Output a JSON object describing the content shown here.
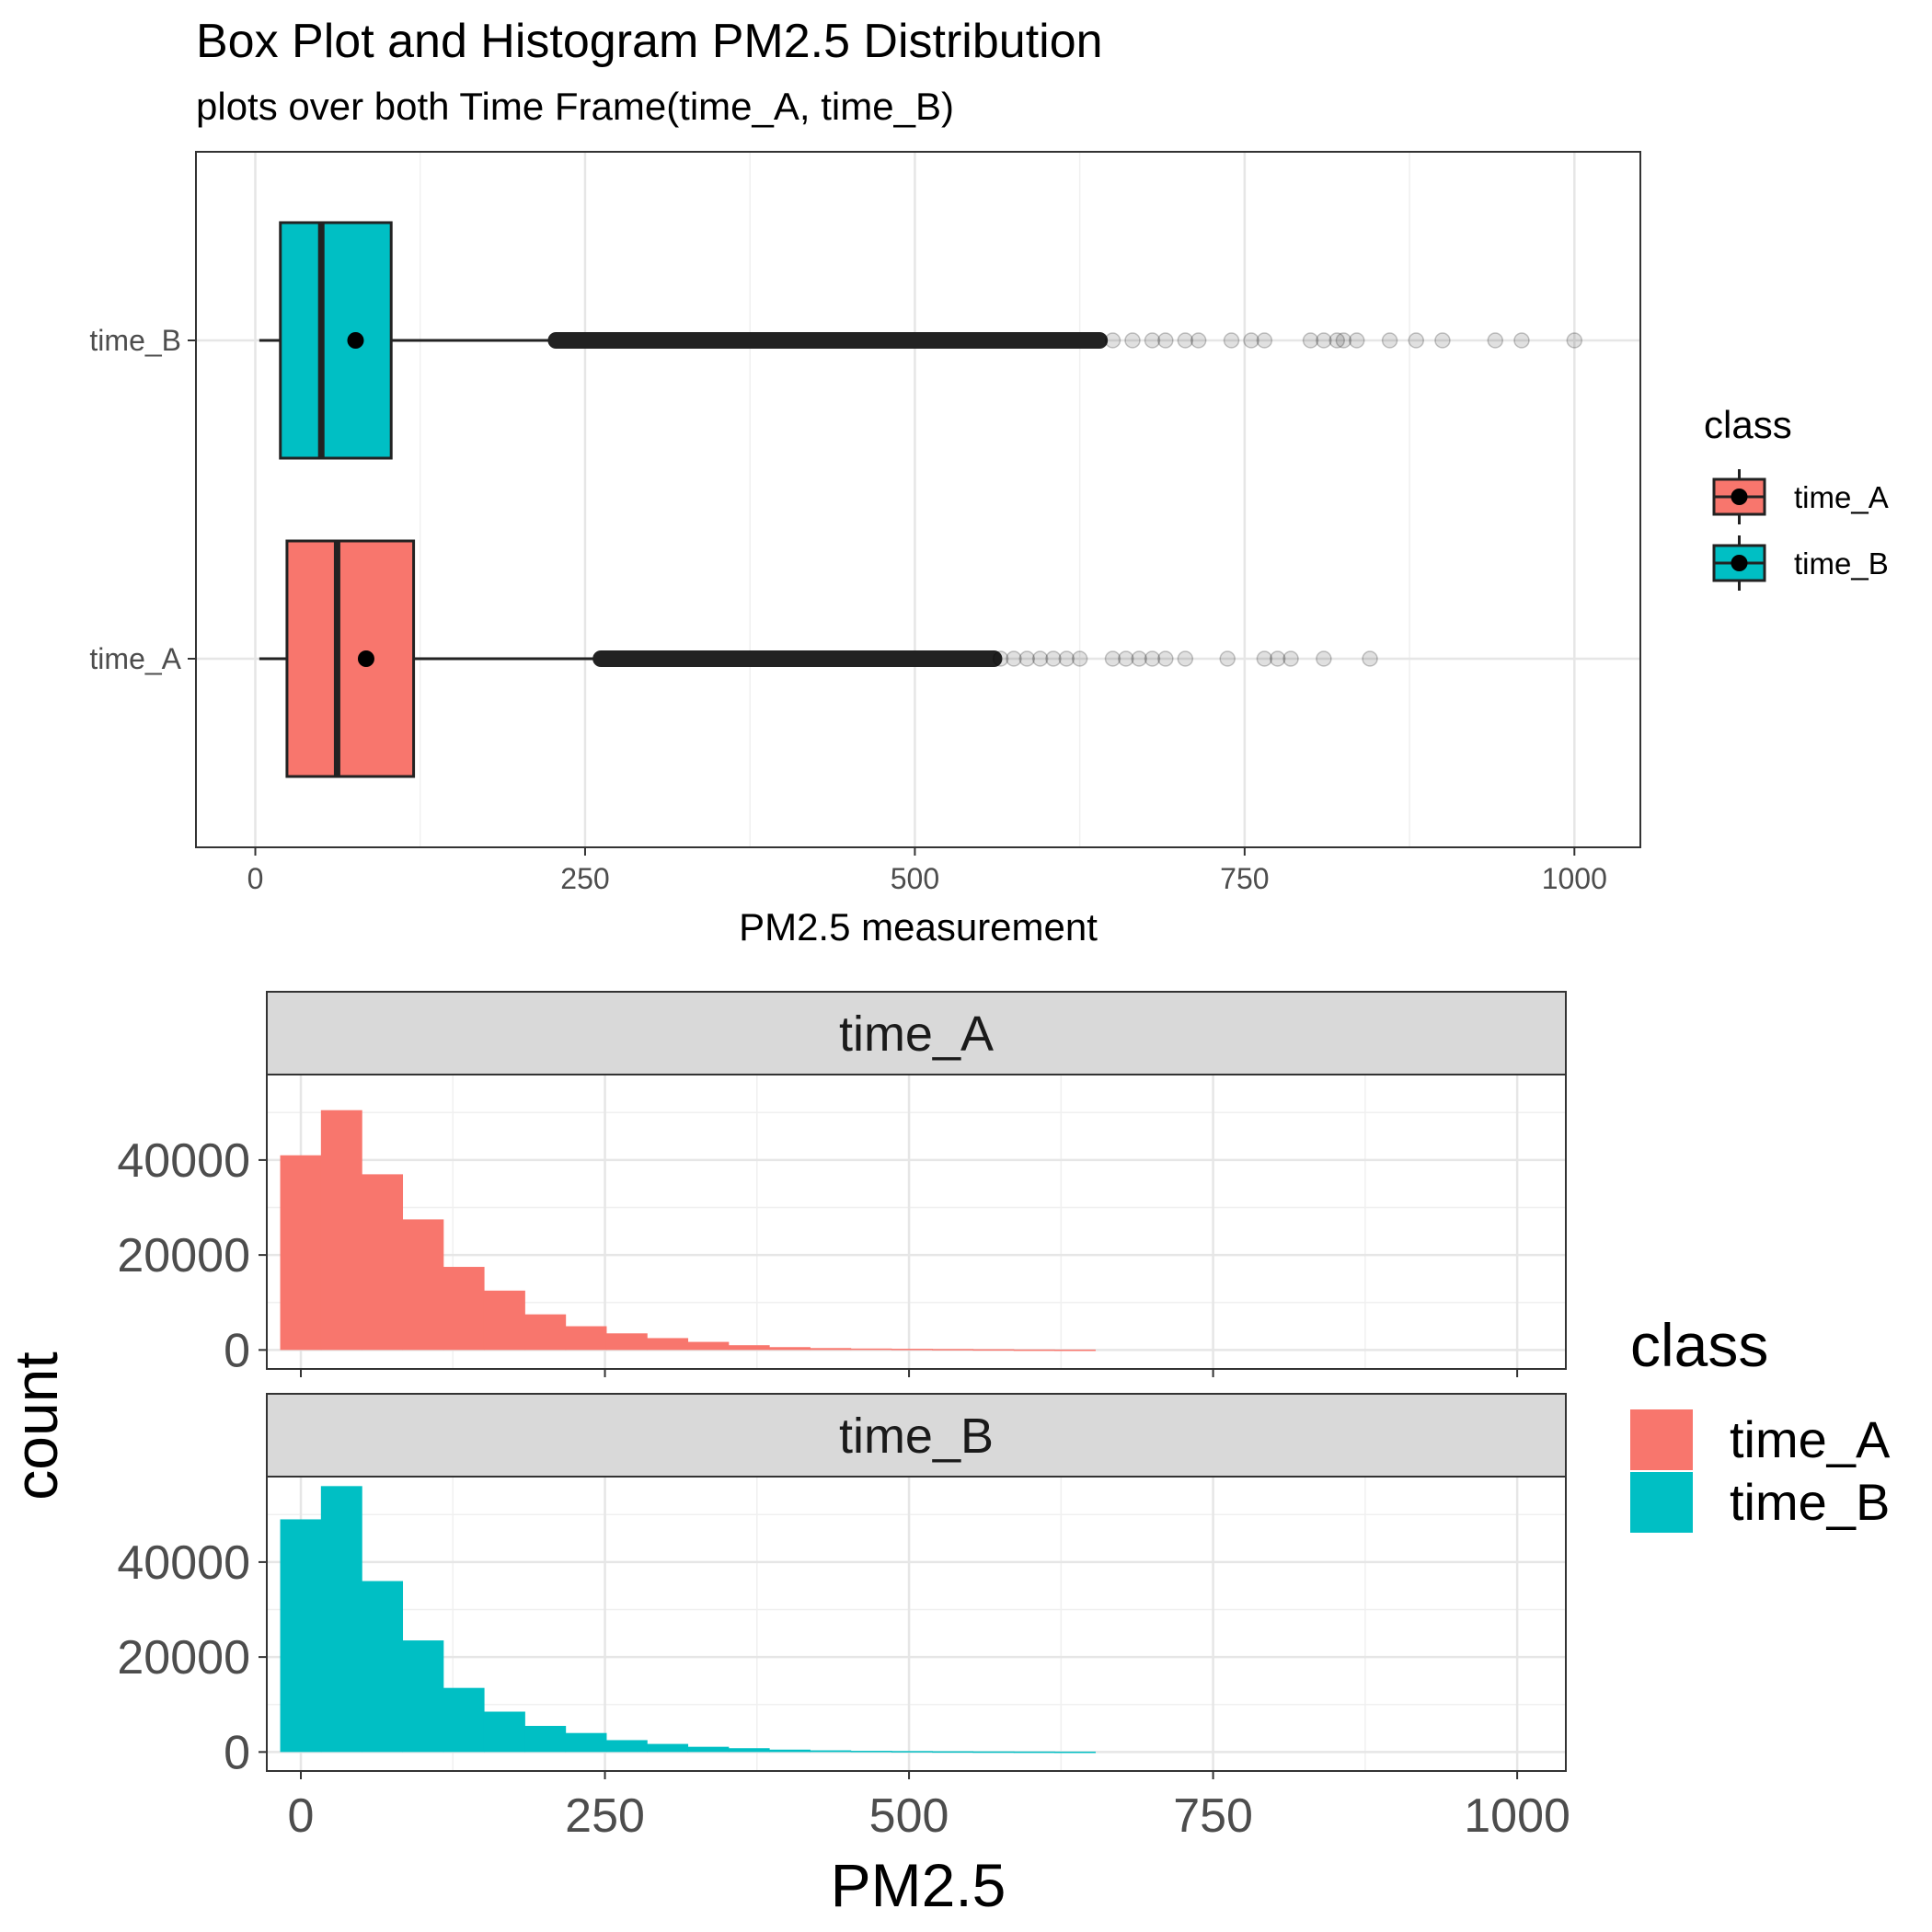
{
  "chart_data": [
    {
      "type": "box",
      "title": "Box Plot and Histogram PM2.5 Distribution",
      "subtitle": "plots over both Time Frame(time_A, time_B)",
      "xlabel": "PM2.5 measurement",
      "ylabel": "",
      "xlim": [
        -45,
        1050
      ],
      "x_ticks": [
        0,
        250,
        500,
        750,
        1000
      ],
      "categories": [
        "time_A",
        "time_B"
      ],
      "grid": true,
      "legend": {
        "title": "class",
        "position": "right",
        "entries": [
          "time_A",
          "time_B"
        ]
      },
      "colors": {
        "time_A": "#F8766D",
        "time_B": "#00BFC4"
      },
      "series": [
        {
          "name": "time_A",
          "whisker_low": 3,
          "q1": 24,
          "median": 62,
          "q3": 120,
          "whisker_high": 262,
          "mean": 84,
          "outlier_dense_range": [
            262,
            560
          ],
          "outliers": [
            565,
            575,
            585,
            595,
            605,
            615,
            625,
            650,
            660,
            670,
            680,
            690,
            705,
            737,
            765,
            775,
            785,
            810,
            845
          ]
        },
        {
          "name": "time_B",
          "whisker_low": 3,
          "q1": 19,
          "median": 50,
          "q3": 103,
          "whisker_high": 228,
          "mean": 76,
          "outlier_dense_range": [
            228,
            640
          ],
          "outliers": [
            650,
            665,
            680,
            690,
            705,
            715,
            740,
            755,
            765,
            800,
            810,
            820,
            825,
            835,
            860,
            880,
            900,
            940,
            960,
            1000
          ]
        }
      ]
    },
    {
      "type": "histogram",
      "xlabel": "PM2.5",
      "ylabel": "count",
      "xlim": [
        -28,
        1040
      ],
      "ylim": [
        -4000,
        58000
      ],
      "x_ticks": [
        0,
        250,
        500,
        750,
        1000
      ],
      "y_ticks": [
        0,
        20000,
        40000
      ],
      "bin_width": 33.5,
      "bin_start": -17,
      "grid": true,
      "legend": {
        "title": "class",
        "position": "right",
        "entries": [
          "time_A",
          "time_B"
        ]
      },
      "panels": [
        {
          "name": "time_A",
          "color": "#F8766D",
          "counts": [
            41000,
            50500,
            37000,
            27500,
            17500,
            12500,
            7500,
            5000,
            3500,
            2500,
            1700,
            1000,
            600,
            400,
            300,
            250,
            200,
            150,
            100,
            80
          ]
        },
        {
          "name": "time_B",
          "color": "#00BFC4",
          "counts": [
            49000,
            56000,
            36000,
            23500,
            13500,
            8500,
            5500,
            4000,
            2500,
            1700,
            1100,
            800,
            500,
            350,
            250,
            200,
            150,
            120,
            100,
            80
          ]
        }
      ]
    }
  ]
}
